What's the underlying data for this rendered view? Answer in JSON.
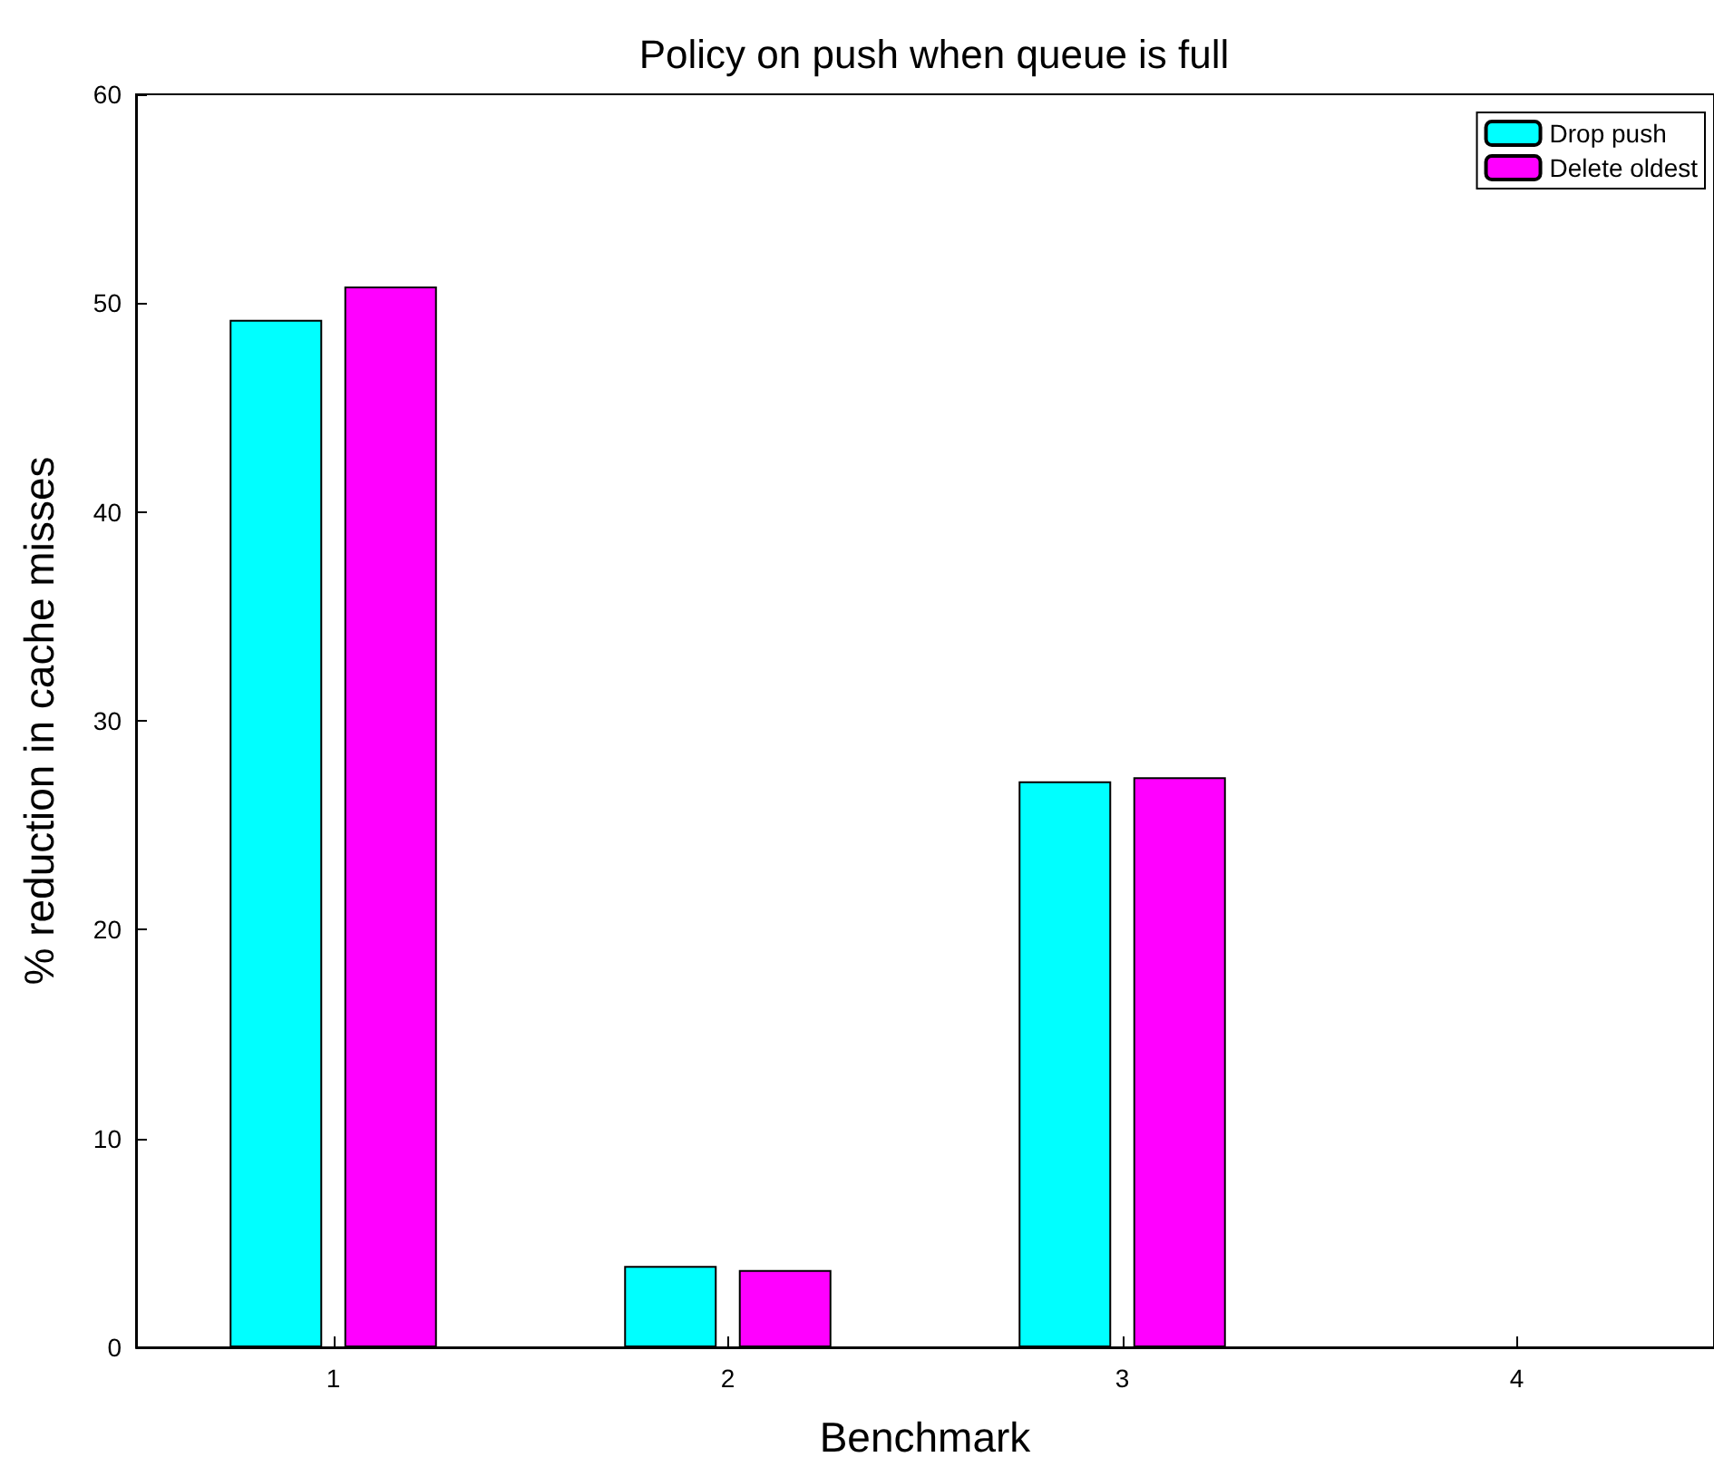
{
  "chart_data": {
    "type": "bar",
    "title": "Policy on push when queue is full",
    "xlabel": "Benchmark",
    "ylabel": "% reduction in cache misses",
    "categories": [
      "1",
      "2",
      "3",
      "4"
    ],
    "series": [
      {
        "name": "Drop push",
        "color": "#00ffff",
        "values": [
          49.2,
          3.9,
          27.1,
          null
        ]
      },
      {
        "name": "Delete oldest",
        "color": "#ff00ff",
        "values": [
          50.8,
          3.7,
          27.3,
          null
        ]
      }
    ],
    "ylim": [
      0,
      60
    ],
    "yticks": [
      0,
      10,
      20,
      30,
      40,
      50,
      60
    ],
    "grid": false,
    "legend": "top right"
  }
}
